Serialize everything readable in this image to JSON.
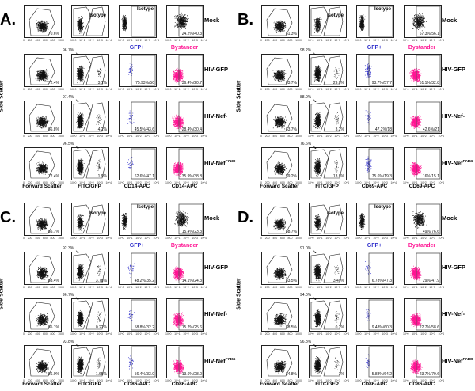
{
  "side_scatter_label": "Side Scatter",
  "isotype_label": "Isotype",
  "gfp_header": "GFP+",
  "bystander_header": "Bystander",
  "colors": {
    "gated": "#111111",
    "gfp": "#3333cc",
    "bystander": "#ff1493"
  },
  "linear_ticks": [
    "0",
    "200",
    "400",
    "600",
    "800",
    "1000"
  ],
  "log_ticks": [
    "10^0",
    "10^1",
    "10^2",
    "10^3",
    "10^4"
  ],
  "row_labels": [
    "Mock",
    "HIV-GFP",
    "HIV-Nef-",
    "HIV-Nef"
  ],
  "panels": [
    {
      "letter": "A.",
      "axis_labels": [
        "Forward Scatter",
        "FITC/GFP",
        "CD14-APC",
        "CD14-APC"
      ],
      "variant_sup": "F7180",
      "rows": [
        {
          "gate": "70.6%",
          "high": "",
          "low": "",
          "gfp": "",
          "bystander": "24.2%/40.3"
        },
        {
          "gate": "72.4%",
          "high": "96.7%",
          "low": "3.1%",
          "gfp": "75.93%/50",
          "bystander": "36.4%/20.7"
        },
        {
          "gate": "66.8%",
          "high": "97.4%",
          "low": "4.2%",
          "gfp": "45.5%/43.6",
          "bystander": "28.4%/30.4"
        },
        {
          "gate": "72.4%",
          "high": "96.5%",
          "low": "1.9%",
          "gfp": "62.6%/47.1",
          "bystander": "35.9%/38.8"
        }
      ]
    },
    {
      "letter": "B.",
      "axis_labels": [
        "Forward Scatter",
        "FITC/GFP",
        "CD69-APC",
        "CD69-APC"
      ],
      "variant_sup": "F7456",
      "rows": [
        {
          "gate": "61.3%",
          "high": "",
          "low": "",
          "gfp": "",
          "bystander": "67.3%/56.1"
        },
        {
          "gate": "63.7%",
          "high": "98.2%",
          "low": "29.8%",
          "gfp": "93.7%/57.7",
          "bystander": "51.1%/32.8"
        },
        {
          "gate": "63.7%",
          "high": "88.0%",
          "low": "3.2%",
          "gfp": "47.2%/18",
          "bystander": "42.6%/21"
        },
        {
          "gate": "59.2%",
          "high": "76.6%",
          "low": "13.8%",
          "gfp": "75.6%/19.3",
          "bystander": "16%/15.1"
        }
      ]
    },
    {
      "letter": "C.",
      "axis_labels": [
        "Forward Scatter",
        "FITC/GFP",
        "CD86-APC",
        "CD86-APC"
      ],
      "variant_sup": "F7456",
      "rows": [
        {
          "gate": "85.7%",
          "high": "",
          "low": "",
          "gfp": "",
          "bystander": "15.4%/23.3"
        },
        {
          "gate": "83.4%",
          "high": "92.3%",
          "low": "3.78%",
          "gfp": "48.2%/35.2",
          "bystander": "14.1%/24.3"
        },
        {
          "gate": "85.1%",
          "high": "96.7%",
          "low": "0.22%",
          "gfp": "58.8%/32.2",
          "bystander": "15.2%/25.6"
        },
        {
          "gate": "86.0%",
          "high": "93.8%",
          "low": "1.65%",
          "gfp": "56.4%/33.0",
          "bystander": "13.6%/28.0"
        }
      ]
    },
    {
      "letter": "D.",
      "axis_labels": [
        "Forward Scatter",
        "FITC/GFP",
        "CD86-APC",
        "CD86-APC"
      ],
      "variant_sup": "F7480",
      "rows": [
        {
          "gate": "88.7%",
          "high": "",
          "low": "",
          "gfp": "",
          "bystander": "49%/76.6"
        },
        {
          "gate": "83.5%",
          "high": "91.0%",
          "low": "3.40%",
          "gfp": "6.78%/47.3",
          "bystander": "29%/47.9"
        },
        {
          "gate": "88.5%",
          "high": "94.0%",
          "low": "0.2%",
          "gfp": "9.43%/60.3",
          "bystander": "22.7%/58.6"
        },
        {
          "gate": "84.8%",
          "high": "96.8%",
          "low": "3%",
          "gfp": "5.88%/64.2",
          "bystander": "23.7%/79.6"
        }
      ]
    }
  ]
}
